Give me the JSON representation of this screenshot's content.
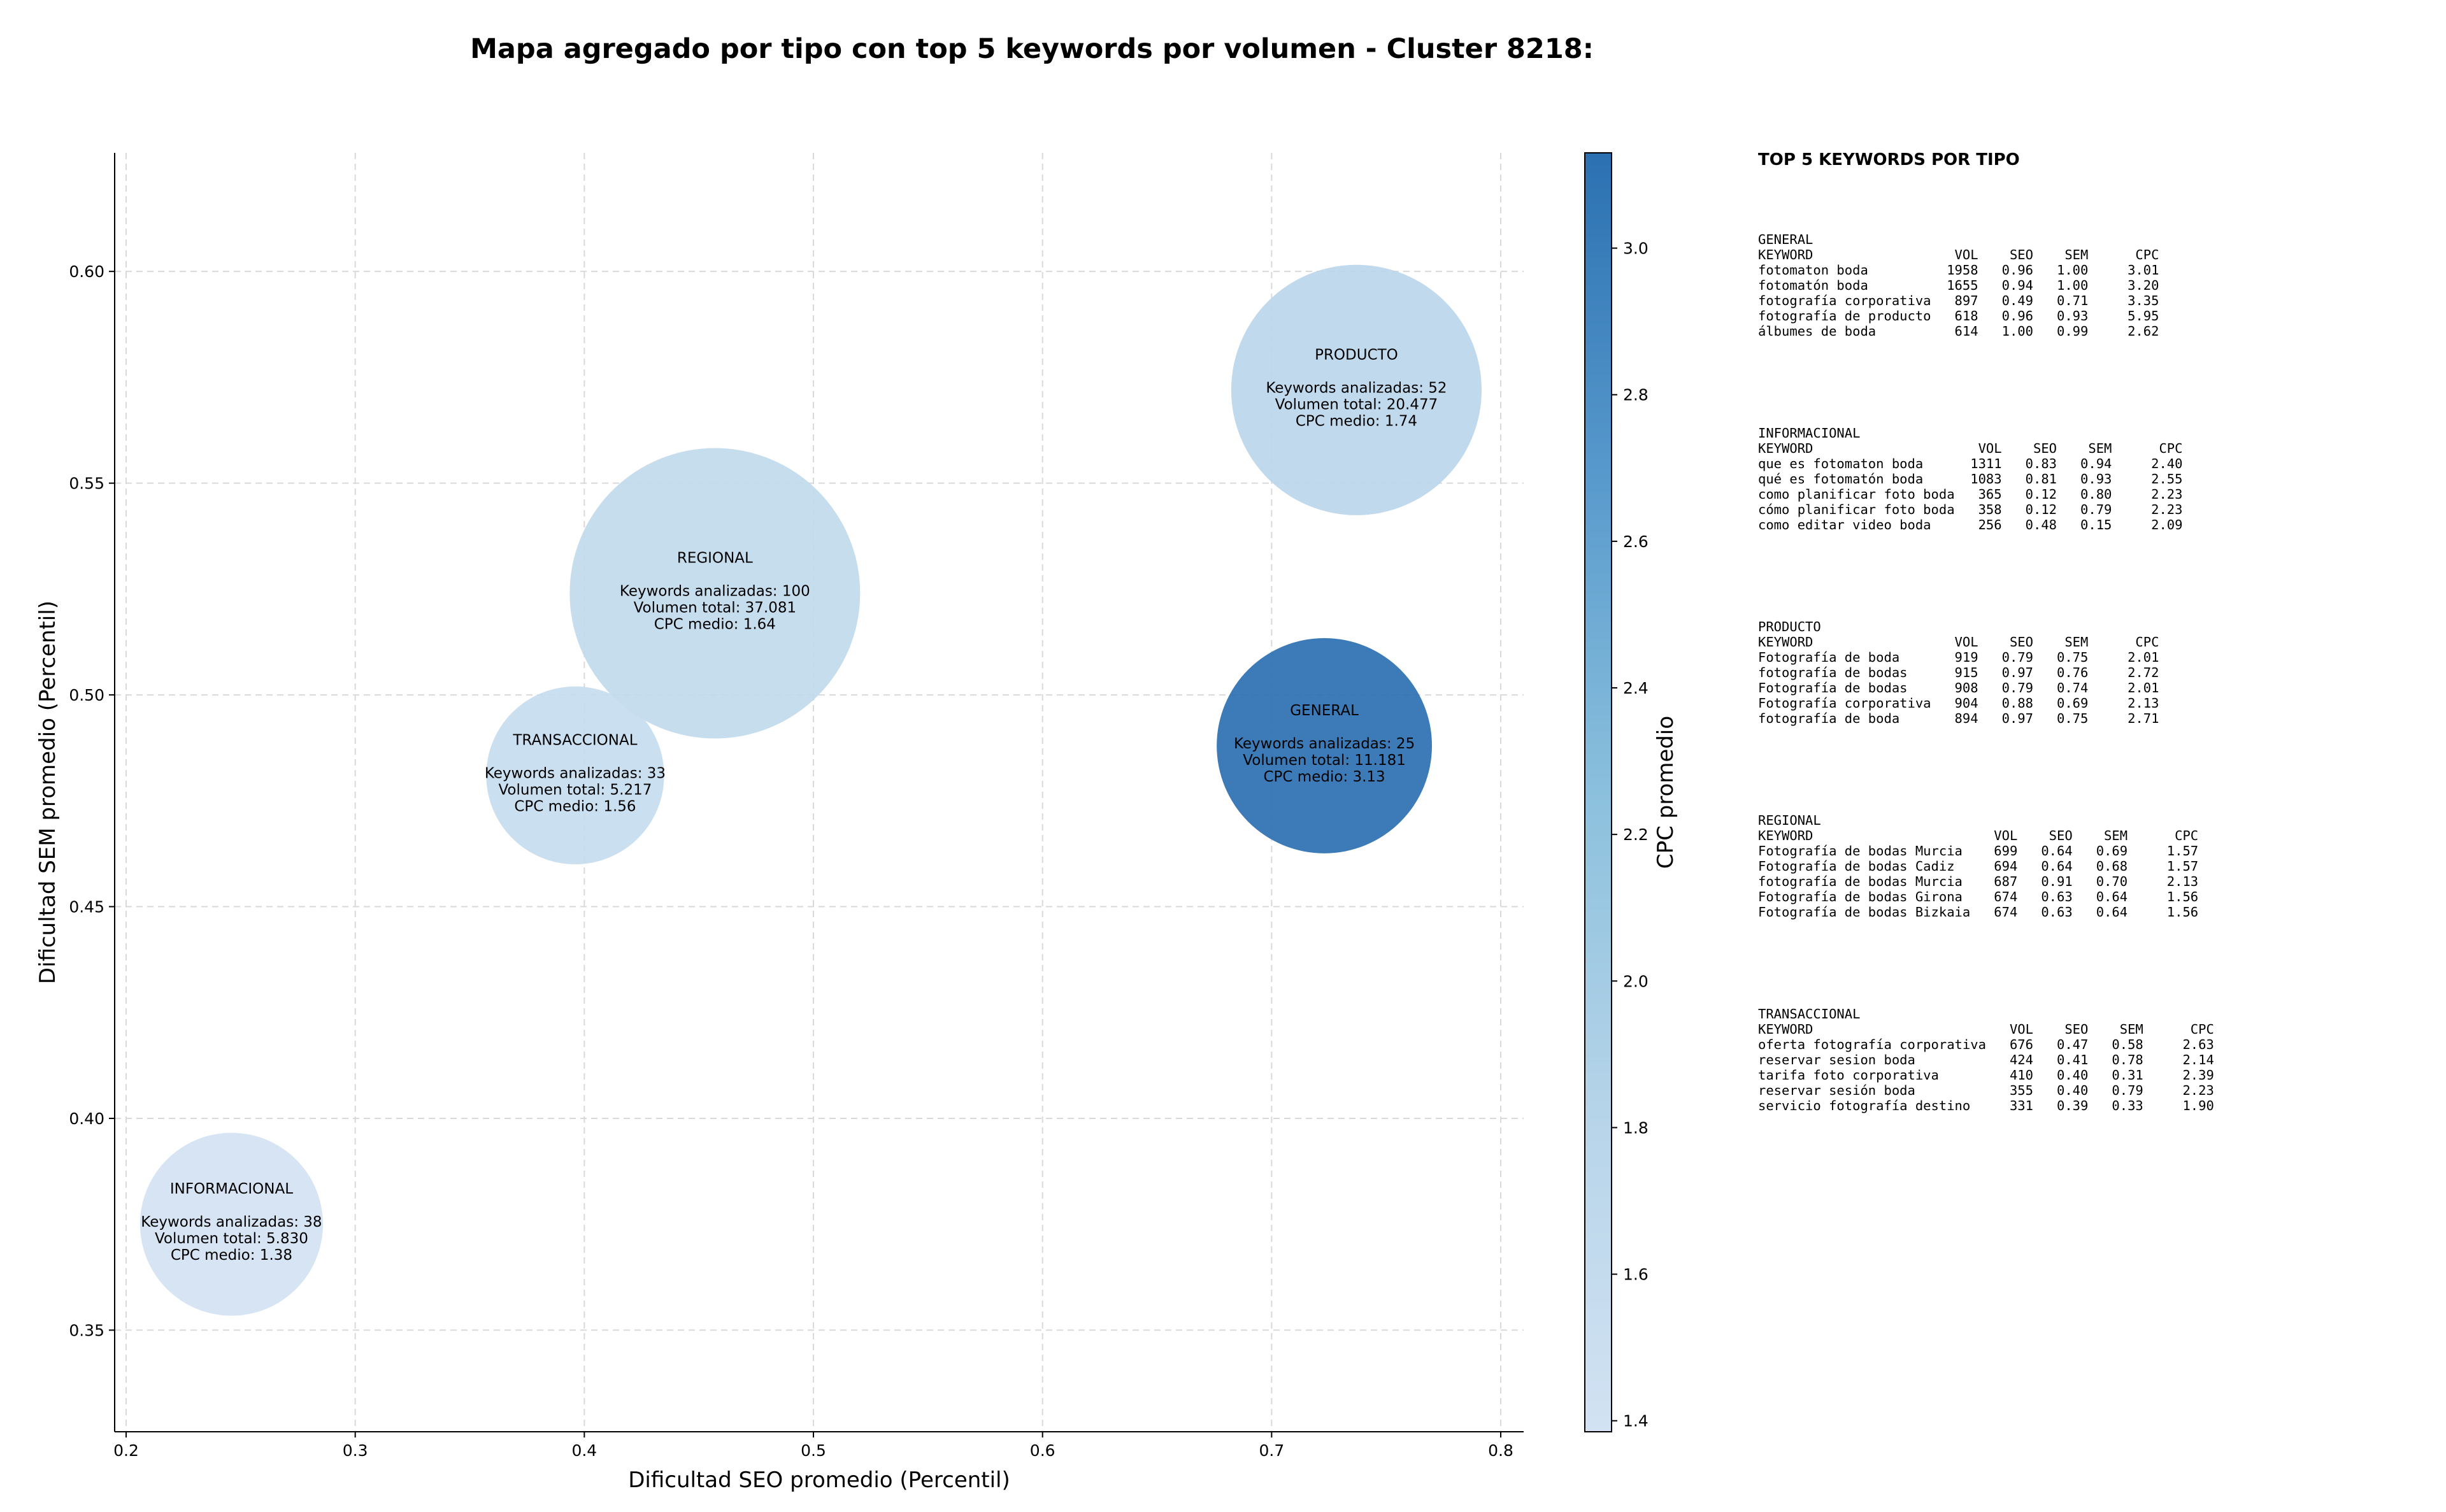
{
  "chart_data": {
    "type": "scatter",
    "title": "Mapa agregado por tipo con top 5 keywords por volumen - Cluster 8218:",
    "xlabel": "Dificultad SEO promedio (Percentil)",
    "ylabel": "Dificultad SEM promedio (Percentil)",
    "xlim": [
      0.195,
      0.81
    ],
    "ylim": [
      0.326,
      0.628
    ],
    "xticks": [
      "0.2",
      "0.3",
      "0.4",
      "0.5",
      "0.6",
      "0.7",
      "0.8"
    ],
    "yticks": [
      "0.35",
      "0.40",
      "0.45",
      "0.50",
      "0.55",
      "0.60"
    ],
    "grid": true,
    "colorbar": {
      "label": "CPC promedio",
      "min": 1.38,
      "max": 3.13,
      "ticks": [
        "1.4",
        "1.6",
        "1.8",
        "2.0",
        "2.2",
        "2.4",
        "2.6",
        "2.8",
        "3.0"
      ],
      "color_low": "#d2e2f2",
      "color_high": "#2b70b1"
    },
    "points": [
      {
        "name": "PRODUCTO",
        "x": 0.737,
        "y": 0.572,
        "keywords_line": "Keywords analizadas: 52",
        "volume_line": "Volumen total: 20.477",
        "cpc_line": "CPC medio: 1.74",
        "cpc": 1.74,
        "keywords": 52,
        "volume": 20477
      },
      {
        "name": "REGIONAL",
        "x": 0.457,
        "y": 0.524,
        "keywords_line": "Keywords analizadas: 100",
        "volume_line": "Volumen total: 37.081",
        "cpc_line": "CPC medio: 1.64",
        "cpc": 1.64,
        "keywords": 100,
        "volume": 37081
      },
      {
        "name": "GENERAL",
        "x": 0.723,
        "y": 0.488,
        "keywords_line": "Keywords analizadas: 25",
        "volume_line": "Volumen total: 11.181",
        "cpc_line": "CPC medio: 3.13",
        "cpc": 3.13,
        "keywords": 25,
        "volume": 11181
      },
      {
        "name": "TRANSACCIONAL",
        "x": 0.396,
        "y": 0.481,
        "keywords_line": "Keywords analizadas: 33",
        "volume_line": "Volumen total: 5.217",
        "cpc_line": "CPC medio: 1.56",
        "cpc": 1.56,
        "keywords": 33,
        "volume": 5217
      },
      {
        "name": "INFORMACIONAL",
        "x": 0.246,
        "y": 0.375,
        "keywords_line": "Keywords analizadas: 38",
        "volume_line": "Volumen total: 5.830",
        "cpc_line": "CPC medio: 1.38",
        "cpc": 1.38,
        "keywords": 38,
        "volume": 5830
      }
    ]
  },
  "side_panel": {
    "title": "TOP 5 KEYWORDS POR TIPO",
    "blocks": [
      {
        "type": "GENERAL",
        "header": "KEYWORD                  VOL    SEO    SEM      CPC",
        "rows": [
          "fotomaton boda          1958   0.96   1.00     3.01",
          "fotomatón boda          1655   0.94   1.00     3.20",
          "fotografía corporativa   897   0.49   0.71     3.35",
          "fotografía de producto   618   0.96   0.93     5.95",
          "álbumes de boda          614   1.00   0.99     2.62"
        ]
      },
      {
        "type": "INFORMACIONAL",
        "header": "KEYWORD                     VOL    SEO    SEM      CPC",
        "rows": [
          "que es fotomaton boda      1311   0.83   0.94     2.40",
          "qué es fotomatón boda      1083   0.81   0.93     2.55",
          "como planificar foto boda   365   0.12   0.80     2.23",
          "cómo planificar foto boda   358   0.12   0.79     2.23",
          "como editar video boda      256   0.48   0.15     2.09"
        ]
      },
      {
        "type": "PRODUCTO",
        "header": "KEYWORD                  VOL    SEO    SEM      CPC",
        "rows": [
          "Fotografía de boda       919   0.79   0.75     2.01",
          "fotografía de bodas      915   0.97   0.76     2.72",
          "Fotografía de bodas      908   0.79   0.74     2.01",
          "Fotografía corporativa   904   0.88   0.69     2.13",
          "fotografía de boda       894   0.97   0.75     2.71"
        ]
      },
      {
        "type": "REGIONAL",
        "header": "KEYWORD                       VOL    SEO    SEM      CPC",
        "rows": [
          "Fotografía de bodas Murcia    699   0.64   0.69     1.57",
          "Fotografía de bodas Cadiz     694   0.64   0.68     1.57",
          "fotografía de bodas Murcia    687   0.91   0.70     2.13",
          "Fotografía de bodas Girona    674   0.63   0.64     1.56",
          "Fotografía de bodas Bizkaia   674   0.63   0.64     1.56"
        ]
      },
      {
        "type": "TRANSACCIONAL",
        "header": "KEYWORD                         VOL    SEO    SEM      CPC",
        "rows": [
          "oferta fotografía corporativa   676   0.47   0.58     2.63",
          "reservar sesion boda            424   0.41   0.78     2.14",
          "tarifa foto corporativa         410   0.40   0.31     2.39",
          "reservar sesión boda            355   0.40   0.79     2.23",
          "servicio fotografía destino     331   0.39   0.33     1.90"
        ]
      }
    ]
  }
}
